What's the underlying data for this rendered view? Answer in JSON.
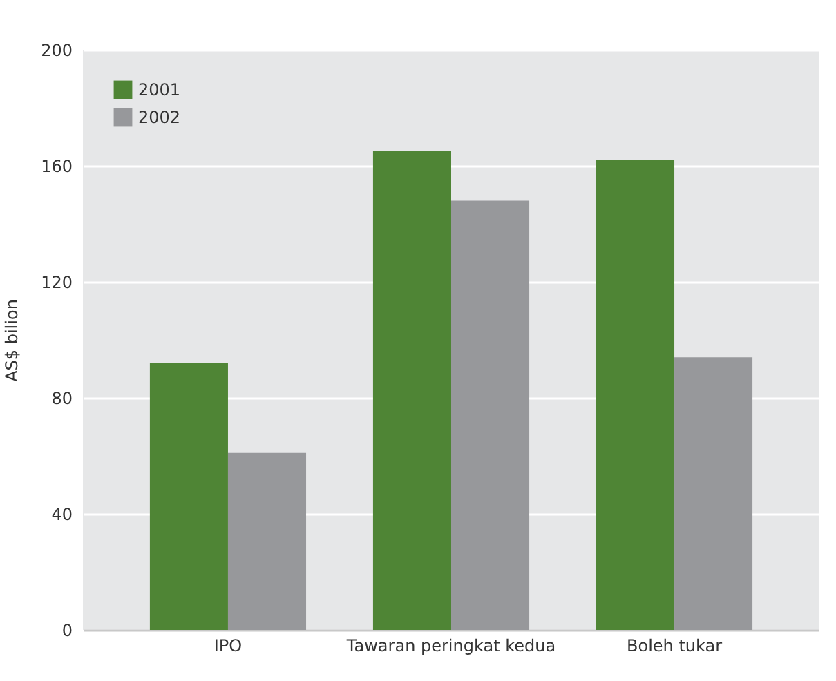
{
  "chart_data": {
    "type": "bar",
    "ylabel": "AS$ bilion",
    "categories": [
      "IPO",
      "Tawaran peringkat kedua",
      "Boleh tukar"
    ],
    "series": [
      {
        "name": "2001",
        "color": "#4f8535",
        "values": [
          92,
          165,
          162
        ]
      },
      {
        "name": "2002",
        "color": "#97989b",
        "values": [
          61,
          148,
          94
        ]
      }
    ],
    "ylim": [
      0,
      200
    ],
    "yticks": [
      0,
      40,
      80,
      120,
      160,
      200
    ],
    "grid": "y",
    "legend": "top left"
  }
}
